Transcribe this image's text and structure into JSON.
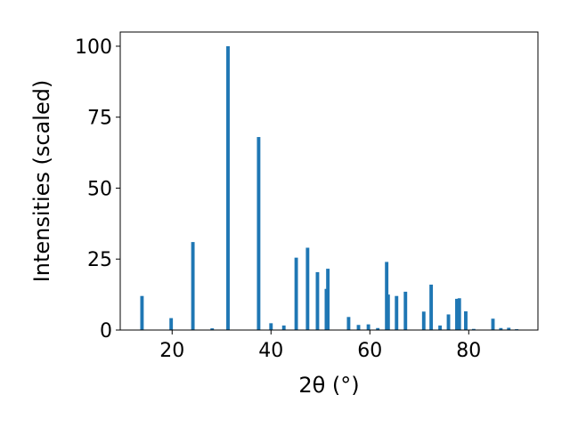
{
  "chart_data": {
    "type": "bar",
    "title": "",
    "xlabel": "2θ (°)",
    "ylabel": "Intensities (scaled)",
    "xlim": [
      9.5,
      94
    ],
    "ylim": [
      0,
      105
    ],
    "xticks": [
      20,
      40,
      60,
      80
    ],
    "yticks": [
      0,
      25,
      50,
      75,
      100
    ],
    "grid": false,
    "bar_color": "#1f77b4",
    "bar_width": 0.7,
    "x": [
      13.9,
      19.8,
      24.2,
      28.1,
      31.3,
      37.5,
      40.0,
      42.6,
      45.1,
      47.4,
      49.4,
      51.2,
      51.5,
      55.7,
      57.7,
      59.7,
      61.6,
      63.4,
      63.7,
      65.4,
      67.2,
      70.9,
      72.4,
      74.2,
      75.9,
      77.6,
      78.1,
      79.4,
      81.0,
      84.9,
      86.5,
      88.1,
      89.7
    ],
    "values": [
      12.0,
      4.2,
      31.0,
      0.6,
      100.0,
      68.0,
      2.4,
      1.6,
      25.5,
      29.0,
      20.4,
      14.5,
      21.6,
      4.6,
      1.8,
      2.0,
      0.7,
      24.0,
      12.5,
      12.0,
      13.5,
      6.5,
      16.0,
      1.6,
      5.5,
      11.0,
      11.2,
      6.6,
      0.4,
      4.0,
      0.7,
      0.8,
      0.3
    ]
  }
}
